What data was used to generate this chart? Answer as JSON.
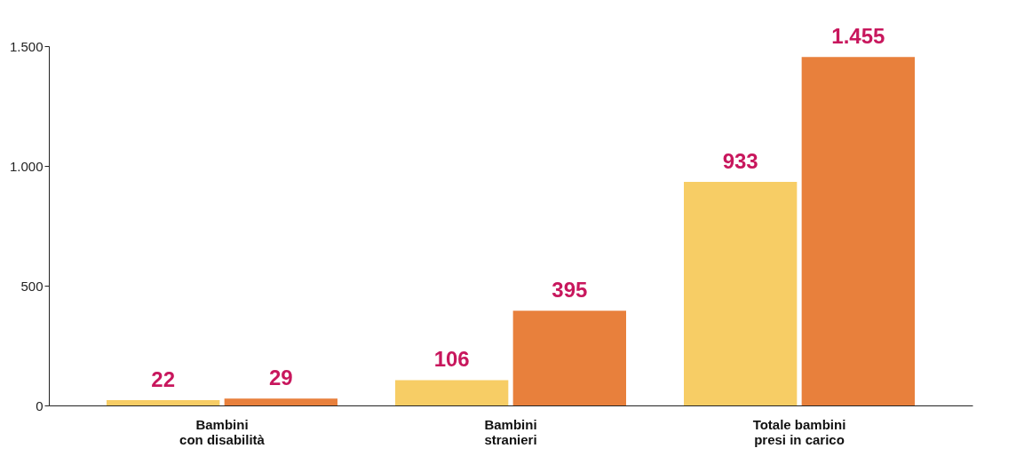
{
  "chart_data": {
    "type": "bar",
    "categories": [
      "Bambini\ncon disabilità",
      "Bambini\nstranieri",
      "Totale bambini\npresi in carico"
    ],
    "series": [
      {
        "color": "#f7cd65",
        "values": [
          22,
          106,
          933
        ],
        "value_labels": [
          "22",
          "106",
          "933"
        ]
      },
      {
        "color": "#e8803c",
        "values": [
          29,
          395,
          1455
        ],
        "value_labels": [
          "29",
          "395",
          "1.455"
        ]
      }
    ],
    "ylim": [
      0,
      1500
    ],
    "yticks": [
      0,
      500,
      {
        "value": 1000,
        "label": "1.000"
      },
      {
        "value": 1500,
        "label": "1.500"
      }
    ],
    "grid": false
  }
}
